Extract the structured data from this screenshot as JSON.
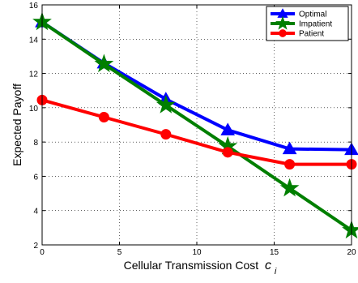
{
  "chart_data": {
    "type": "line",
    "title": "",
    "xlabel": "Cellular Transmission Cost",
    "xlabel_symbol": "c",
    "xlabel_subscript": "i",
    "ylabel": "Expected Payoff",
    "xlim": [
      0,
      20
    ],
    "ylim": [
      2,
      16
    ],
    "xticks": [
      0,
      5,
      10,
      15,
      20
    ],
    "yticks": [
      2,
      4,
      6,
      8,
      10,
      12,
      14,
      16
    ],
    "grid": true,
    "grid_style": "dotted",
    "legend_position": "top-right",
    "x": [
      0,
      4,
      8,
      12,
      16,
      20
    ],
    "series": [
      {
        "name": "Optimal",
        "color": "#0000ff",
        "marker": "triangle",
        "values": [
          15.0,
          12.6,
          10.5,
          8.7,
          7.6,
          7.55
        ]
      },
      {
        "name": "Impatient",
        "color": "#007f00",
        "marker": "star",
        "values": [
          15.0,
          12.55,
          10.15,
          7.75,
          5.3,
          2.85
        ]
      },
      {
        "name": "Patient",
        "color": "#ff0000",
        "marker": "circle",
        "values": [
          10.45,
          9.45,
          8.45,
          7.4,
          6.7,
          6.7
        ]
      }
    ]
  }
}
